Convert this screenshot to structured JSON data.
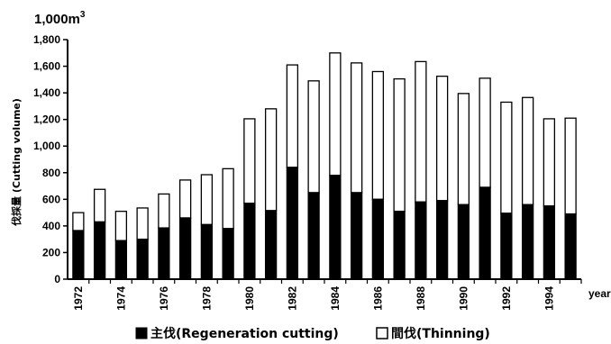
{
  "chart_data": {
    "type": "bar",
    "stacked": true,
    "unit_label": "1,000m",
    "unit_superscript": "3",
    "ylabel": "伐採量 (Cutting volume)",
    "xlabel": "year",
    "ylim": [
      0,
      1800
    ],
    "yticks": [
      "0",
      "200",
      "400",
      "600",
      "800",
      "1,000",
      "1,200",
      "1,400",
      "1,600",
      "1,800"
    ],
    "xtick_labels": [
      "1972",
      "1974",
      "1976",
      "1978",
      "1980",
      "1982",
      "1984",
      "1986",
      "1988",
      "1990",
      "1992",
      "1994"
    ],
    "categories": [
      "1972",
      "1973",
      "1974",
      "1975",
      "1976",
      "1977",
      "1978",
      "1979",
      "1980",
      "1981",
      "1982",
      "1983",
      "1984",
      "1985",
      "1986",
      "1987",
      "1988",
      "1989",
      "1990",
      "1991",
      "1992",
      "1993",
      "1994",
      "1995"
    ],
    "series": [
      {
        "name": "主伐(Regeneration cutting)",
        "color": "#000000",
        "values": [
          365,
          430,
          290,
          300,
          385,
          460,
          410,
          380,
          570,
          515,
          840,
          650,
          780,
          650,
          600,
          510,
          580,
          590,
          560,
          690,
          495,
          560,
          550,
          490
        ]
      },
      {
        "name": "間伐(Thinning)",
        "color": "#ffffff",
        "values": [
          135,
          245,
          220,
          235,
          255,
          285,
          375,
          450,
          635,
          765,
          770,
          840,
          920,
          975,
          960,
          995,
          1055,
          935,
          835,
          820,
          835,
          805,
          655,
          720
        ]
      }
    ],
    "legend_position": "bottom",
    "grid": false
  }
}
